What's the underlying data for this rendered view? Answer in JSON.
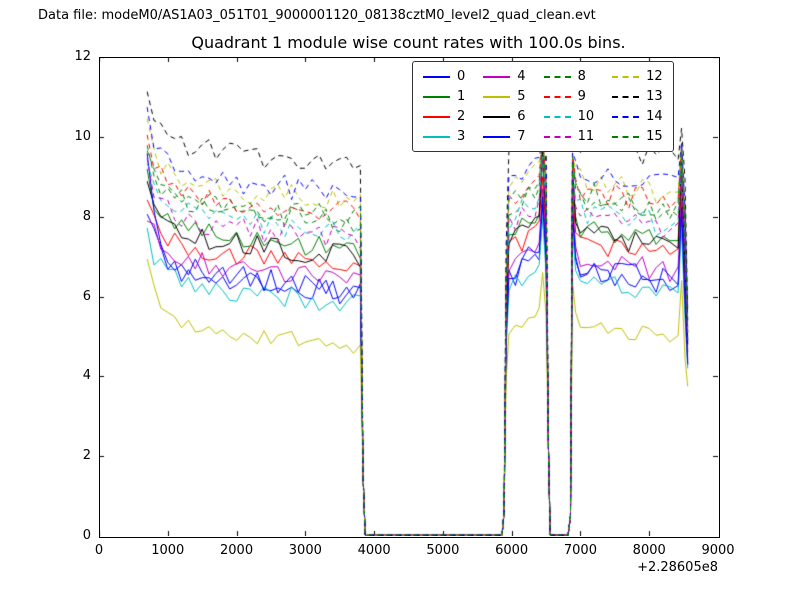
{
  "header": {
    "datafile_label": "Data file: modeM0/AS1A03_051T01_9000001120_08138cztM0_level2_quad_clean.evt"
  },
  "chart_data": {
    "type": "line",
    "title": "Quadrant 1 module wise count rates with 100.0s bins.",
    "xlabel": "",
    "ylabel": "",
    "x_offset_label": "+2.28605e8",
    "xlim": [
      0,
      9000
    ],
    "ylim": [
      0,
      12
    ],
    "xticks": [
      "0",
      "1000",
      "2000",
      "3000",
      "4000",
      "5000",
      "6000",
      "7000",
      "8000",
      "9000"
    ],
    "yticks": [
      "0",
      "2",
      "4",
      "6",
      "8",
      "10",
      "12"
    ],
    "bin_seconds": 100,
    "grid": false,
    "legend": {
      "position": "upper center",
      "columns": 4
    },
    "time_structure": {
      "data_segments_x": [
        [
          700,
          3830
        ],
        [
          5880,
          6560
        ],
        [
          6840,
          8560
        ]
      ],
      "zero_gaps_x": [
        [
          3870,
          5860
        ],
        [
          6570,
          6830
        ]
      ]
    },
    "series": [
      {
        "label": "0",
        "color": "#0000ff",
        "dash": false,
        "base": 6.55,
        "start_peak": 8.2,
        "mid_peak": 8.3,
        "end_value": 4.3,
        "noise": 0.3
      },
      {
        "label": "1",
        "color": "#008000",
        "dash": false,
        "base": 7.65,
        "start_peak": 9.0,
        "mid_peak": 9.4,
        "end_value": 4.9,
        "noise": 0.28
      },
      {
        "label": "2",
        "color": "#ff0000",
        "dash": false,
        "base": 7.25,
        "start_peak": 8.6,
        "mid_peak": 9.0,
        "end_value": 4.6,
        "noise": 0.3
      },
      {
        "label": "3",
        "color": "#00bfbf",
        "dash": false,
        "base": 6.3,
        "start_peak": 7.6,
        "mid_peak": 8.0,
        "end_value": 4.2,
        "noise": 0.28
      },
      {
        "label": "4",
        "color": "#bf00bf",
        "dash": false,
        "base": 6.9,
        "start_peak": 8.1,
        "mid_peak": 8.7,
        "end_value": 4.4,
        "noise": 0.28
      },
      {
        "label": "5",
        "color": "#bfbf00",
        "dash": false,
        "base": 5.25,
        "start_peak": 7.0,
        "mid_peak": 6.6,
        "end_value": 3.75,
        "noise": 0.22
      },
      {
        "label": "6",
        "color": "#000000",
        "dash": false,
        "base": 7.5,
        "start_peak": 8.8,
        "mid_peak": 9.7,
        "end_value": 4.8,
        "noise": 0.28
      },
      {
        "label": "7",
        "color": "#0000ff",
        "dash": false,
        "base": 6.65,
        "start_peak": 9.9,
        "mid_peak": 8.5,
        "end_value": 4.3,
        "noise": 0.32
      },
      {
        "label": "8",
        "color": "#008000",
        "dash": true,
        "base": 8.35,
        "start_peak": 9.6,
        "mid_peak": 9.9,
        "end_value": 5.1,
        "noise": 0.3
      },
      {
        "label": "9",
        "color": "#ff0000",
        "dash": true,
        "base": 8.6,
        "start_peak": 9.9,
        "mid_peak": 10.0,
        "end_value": 5.2,
        "noise": 0.3
      },
      {
        "label": "10",
        "color": "#00bfbf",
        "dash": true,
        "base": 8.05,
        "start_peak": 9.3,
        "mid_peak": 9.5,
        "end_value": 5.0,
        "noise": 0.3
      },
      {
        "label": "11",
        "color": "#bf00bf",
        "dash": true,
        "base": 7.9,
        "start_peak": 9.2,
        "mid_peak": 9.4,
        "end_value": 4.9,
        "noise": 0.3
      },
      {
        "label": "12",
        "color": "#bfbf00",
        "dash": true,
        "base": 8.85,
        "start_peak": 10.3,
        "mid_peak": 9.9,
        "end_value": 5.3,
        "noise": 0.3
      },
      {
        "label": "13",
        "color": "#000000",
        "dash": true,
        "base": 9.75,
        "start_peak": 11.0,
        "mid_peak": 10.3,
        "end_value": 5.6,
        "noise": 0.28
      },
      {
        "label": "14",
        "color": "#0000ff",
        "dash": true,
        "base": 9.05,
        "start_peak": 10.5,
        "mid_peak": 10.0,
        "end_value": 5.4,
        "noise": 0.32
      },
      {
        "label": "15",
        "color": "#008000",
        "dash": true,
        "base": 8.5,
        "start_peak": 9.8,
        "mid_peak": 9.9,
        "end_value": 5.1,
        "noise": 0.3
      }
    ]
  }
}
